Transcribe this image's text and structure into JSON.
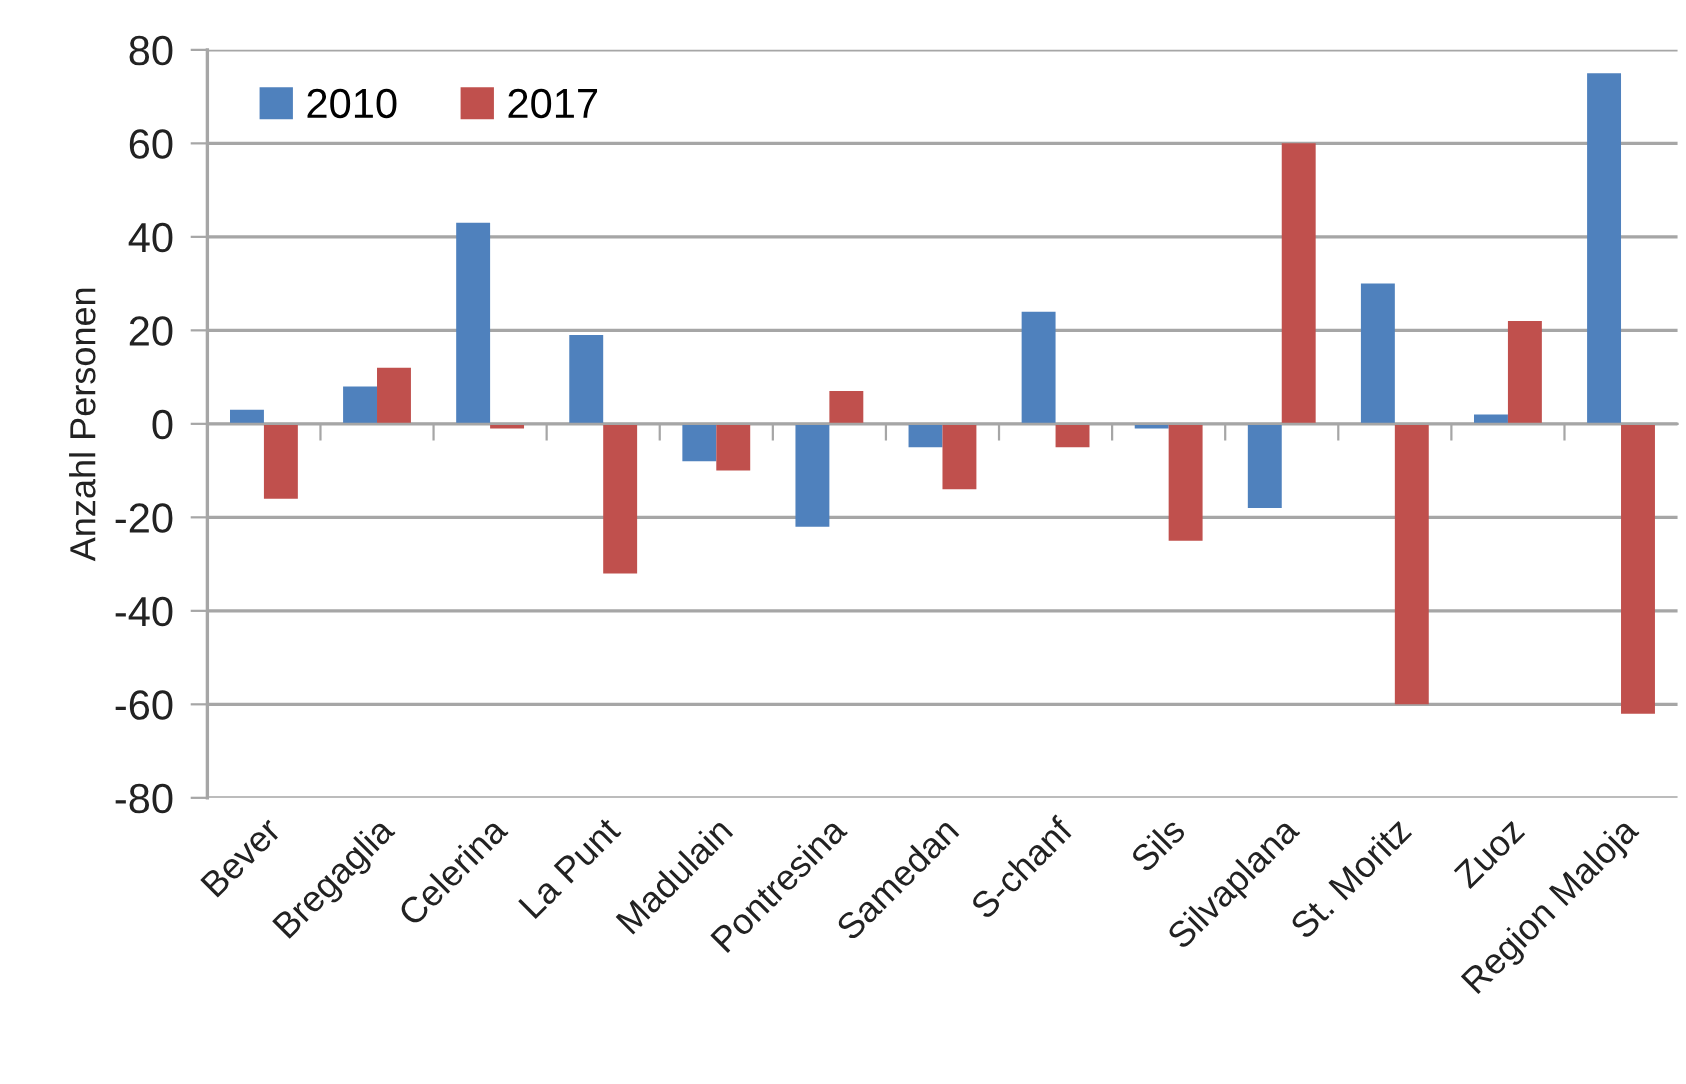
{
  "chart_data": {
    "type": "bar",
    "ylabel": "Anzahl Personen",
    "categories": [
      "Bever",
      "Bregaglia",
      "Celerina",
      "La Punt",
      "Madulain",
      "Pontresina",
      "Samedan",
      "S-chanf",
      "Sils",
      "Silvaplana",
      "St. Moritz",
      "Zuoz",
      "Region Maloja"
    ],
    "series": [
      {
        "name": "2010",
        "color": "#4f81bd",
        "values": [
          3,
          8,
          43,
          19,
          -8,
          -22,
          -5,
          24,
          -1,
          -18,
          30,
          2,
          75
        ]
      },
      {
        "name": "2017",
        "color": "#c0504d",
        "values": [
          -16,
          12,
          -1,
          -32,
          -10,
          7,
          -14,
          -5,
          -25,
          60,
          -60,
          22,
          -62
        ]
      }
    ],
    "ylim": [
      -80,
      80
    ],
    "yticks": [
      -80,
      -60,
      -40,
      -20,
      0,
      20,
      40,
      60,
      80
    ],
    "grid": "y",
    "legend": "top left"
  }
}
